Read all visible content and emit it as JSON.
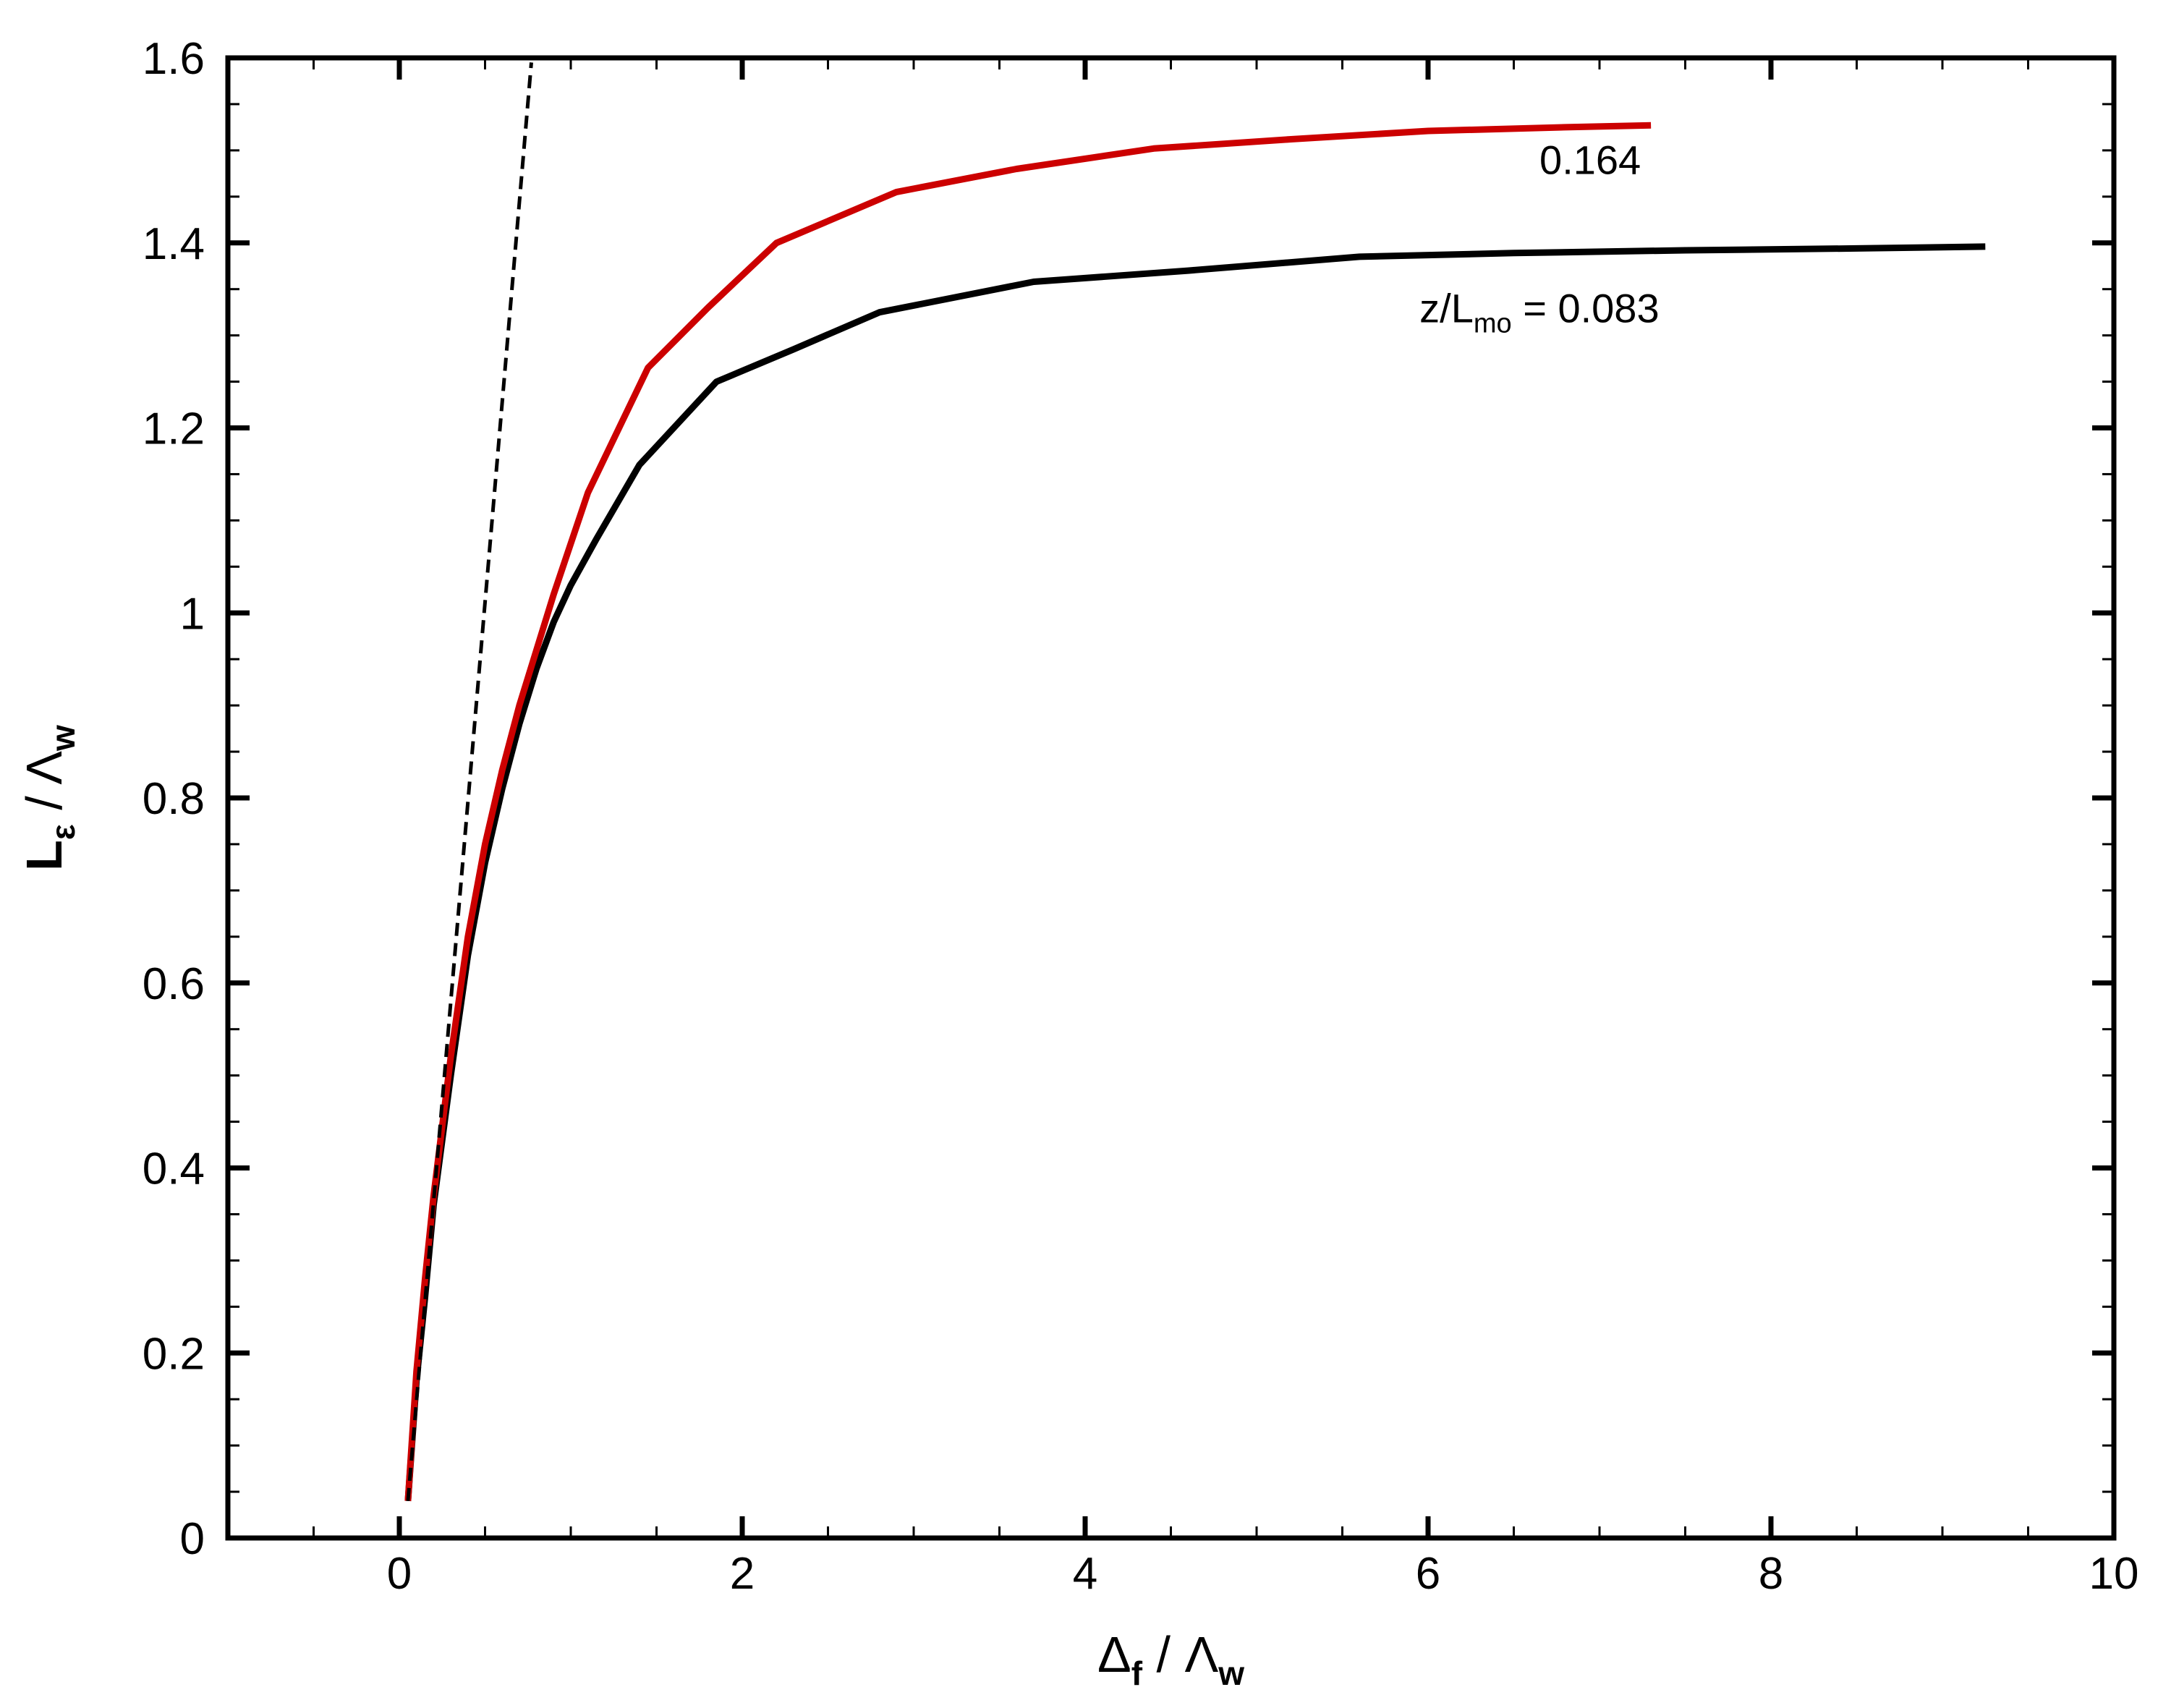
{
  "chart_data": {
    "type": "line",
    "xlim": [
      -1,
      10
    ],
    "ylim": [
      0,
      1.6
    ],
    "x_ticks": [
      0,
      2,
      4,
      6,
      8,
      10
    ],
    "x_tick_labels": [
      "0",
      "2",
      "4",
      "6",
      "8",
      "10"
    ],
    "x_minor_step": 0.5,
    "y_ticks": [
      0,
      0.2,
      0.4,
      0.6,
      0.8,
      1.0,
      1.2,
      1.4,
      1.6
    ],
    "y_tick_labels": [
      "0",
      "0.2",
      "0.4",
      "0.6",
      "0.8",
      "1",
      "1.2",
      "1.4",
      "1.6"
    ],
    "y_minor_step": 0.05,
    "xlabel": {
      "main": "Δ",
      "sub": "f",
      "rest": " / Λ",
      "sub2": "w"
    },
    "ylabel": {
      "main": "L",
      "sub": "ε",
      "rest": " / Λ",
      "sub2": "w"
    },
    "grid": false,
    "legend": "none",
    "series": [
      {
        "color": "#000000",
        "style": "solid",
        "x": [
          0.05,
          0.1,
          0.15,
          0.2,
          0.3,
          0.4,
          0.5,
          0.6,
          0.7,
          0.8,
          0.9,
          1.0,
          1.15,
          1.4,
          1.85,
          2.3,
          2.8,
          3.7,
          4.6,
          5.6,
          6.5,
          7.5,
          8.5,
          9.25
        ],
        "y": [
          0.04,
          0.17,
          0.26,
          0.36,
          0.5,
          0.63,
          0.73,
          0.81,
          0.88,
          0.94,
          0.99,
          1.03,
          1.08,
          1.16,
          1.25,
          1.285,
          1.325,
          1.358,
          1.37,
          1.385,
          1.389,
          1.392,
          1.394,
          1.396
        ]
      },
      {
        "color": "#cc0000",
        "style": "solid",
        "x": [
          0.05,
          0.1,
          0.15,
          0.2,
          0.3,
          0.4,
          0.5,
          0.6,
          0.7,
          0.8,
          0.9,
          1.1,
          1.45,
          1.8,
          2.2,
          2.9,
          3.6,
          4.4,
          5.2,
          6.0,
          6.8,
          7.3
        ],
        "y": [
          0.04,
          0.18,
          0.28,
          0.37,
          0.52,
          0.65,
          0.75,
          0.83,
          0.9,
          0.96,
          1.02,
          1.13,
          1.265,
          1.33,
          1.4,
          1.455,
          1.48,
          1.502,
          1.512,
          1.521,
          1.525,
          1.527
        ]
      },
      {
        "color": "#000000",
        "style": "dashed",
        "x": [
          0.05,
          0.77
        ],
        "y": [
          0.04,
          1.595
        ]
      }
    ],
    "annotations": [
      {
        "text": "0.164",
        "x": 6.65,
        "y": 1.49
      },
      {
        "prefix": "z/L",
        "sub": "mo",
        "suffix": " = 0.083",
        "x": 5.95,
        "y": 1.33
      }
    ]
  }
}
